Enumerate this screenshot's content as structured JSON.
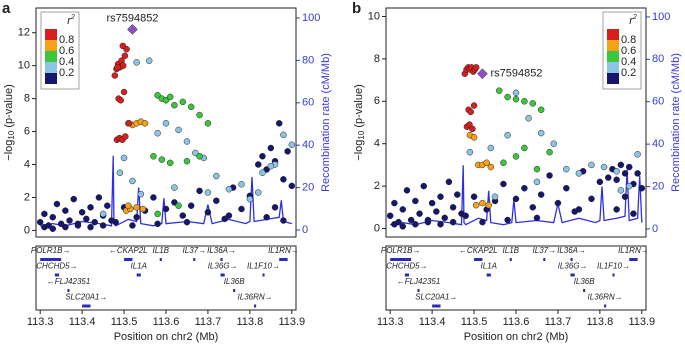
{
  "chart_data": [
    {
      "type": "scatter",
      "panel": "a",
      "ylabel": "−log",
      "ylabel_sub": "10",
      "ylabel_rest": " (p-value)",
      "y2label": "Recombination rate (cM/Mb)",
      "xlabel": "Position on chr2 (Mb)",
      "xlim": [
        113.29,
        113.91
      ],
      "xticks": [
        113.3,
        113.4,
        113.5,
        113.6,
        113.7,
        113.8,
        113.9
      ],
      "ylim": [
        -0.4,
        13.5
      ],
      "yticks": [
        0,
        2,
        4,
        6,
        8,
        10,
        12
      ],
      "y2lim": [
        -3.3,
        104.7
      ],
      "y2ticks": [
        0,
        20,
        40,
        60,
        80,
        100
      ],
      "legend": {
        "loc": "upper left",
        "title": "r",
        "title_sup": "2",
        "colors": [
          "#d91e1e",
          "#f5a219",
          "#3cc63c",
          "#8cc4e4",
          "#15166c"
        ],
        "ticks": [
          0.8,
          0.6,
          0.4,
          0.2
        ]
      },
      "lead": {
        "name": "rs7594852",
        "x": 113.52,
        "y": 12.2,
        "color": "#8e4fc2"
      },
      "series": [
        {
          "color": "#15166c",
          "x": [
            113.3,
            113.31,
            113.32,
            113.33,
            113.34,
            113.35,
            113.36,
            113.37,
            113.38,
            113.39,
            113.4,
            113.41,
            113.42,
            113.43,
            113.44,
            113.45,
            113.46,
            113.47,
            113.31,
            113.33,
            113.36,
            113.39,
            113.42,
            113.45,
            113.48,
            113.5,
            113.53,
            113.55,
            113.57,
            113.6,
            113.62,
            113.64,
            113.66,
            113.68,
            113.7,
            113.72,
            113.74,
            113.76,
            113.78,
            113.8,
            113.82,
            113.83,
            113.84,
            113.85,
            113.86,
            113.87,
            113.88,
            113.89,
            113.9,
            113.84,
            113.86,
            113.88,
            113.52,
            113.58,
            113.65,
            113.75
          ],
          "values": [
            0.5,
            1.0,
            0.3,
            0.8,
            1.6,
            0.4,
            1.2,
            0.6,
            1.9,
            0.3,
            1.1,
            0.7,
            1.4,
            0.5,
            2.0,
            0.9,
            1.5,
            0.6,
            0.2,
            0.1,
            0.2,
            0.4,
            0.2,
            0.3,
            0.5,
            1.4,
            0.8,
            1.2,
            2.0,
            1.3,
            1.7,
            0.9,
            1.5,
            2.4,
            1.1,
            1.8,
            0.7,
            2.6,
            1.3,
            2.1,
            4.0,
            4.5,
            3.7,
            5.0,
            4.2,
            6.5,
            3.1,
            4.8,
            2.7,
            0.8,
            1.4,
            0.6,
            0.3,
            0.4,
            0.5,
            0.9
          ]
        },
        {
          "color": "#8cc4e4",
          "x": [
            113.49,
            113.5,
            113.53,
            113.56,
            113.58,
            113.6,
            113.63,
            113.65,
            113.67,
            113.69,
            113.72,
            113.75,
            113.78,
            113.8,
            113.83,
            113.86,
            113.88,
            113.9,
            113.85,
            113.82,
            113.54,
            113.62,
            113.7,
            113.52,
            113.45
          ],
          "values": [
            3.5,
            4.4,
            10.2,
            10.3,
            5.9,
            6.5,
            6.1,
            5.4,
            4.7,
            4.4,
            3.3,
            2.5,
            2.8,
            1.9,
            3.5,
            4.0,
            5.8,
            5.2,
            3.9,
            2.3,
            2.2,
            2.6,
            2.3,
            3.0,
            1.0
          ]
        },
        {
          "color": "#3cc63c",
          "x": [
            113.58,
            113.59,
            113.6,
            113.61,
            113.62,
            113.64,
            113.66,
            113.68,
            113.7,
            113.57,
            113.59,
            113.61,
            113.65,
            113.68,
            113.58,
            113.63
          ],
          "values": [
            8.2,
            8.0,
            7.9,
            8.1,
            7.6,
            7.8,
            7.5,
            7.0,
            6.5,
            4.5,
            4.3,
            4.1,
            4.2,
            4.5,
            1.0,
            1.5
          ]
        },
        {
          "color": "#f5a219",
          "x": [
            113.51,
            113.52,
            113.53,
            113.54,
            113.55,
            113.505,
            113.515,
            113.53,
            113.545,
            113.51
          ],
          "values": [
            6.5,
            6.4,
            6.5,
            6.6,
            6.5,
            1.2,
            1.3,
            1.4,
            1.3,
            1.5
          ]
        },
        {
          "color": "#d91e1e",
          "x": [
            113.478,
            113.482,
            113.486,
            113.49,
            113.494,
            113.498,
            113.502,
            113.506,
            113.483,
            113.489,
            113.496,
            113.503,
            113.487,
            113.492,
            113.5,
            113.484,
            113.497,
            113.512
          ],
          "values": [
            9.4,
            9.8,
            10.1,
            9.9,
            10.3,
            10.0,
            10.6,
            11.0,
            5.5,
            5.6,
            5.5,
            5.7,
            8.0,
            7.9,
            8.4,
            9.9,
            11.2,
            6.5
          ]
        }
      ],
      "recomb": {
        "color": "#2f2fe0",
        "x": [
          113.3,
          113.33,
          113.36,
          113.4,
          113.44,
          113.47,
          113.474,
          113.476,
          113.48,
          113.51,
          113.53,
          113.535,
          113.54,
          113.57,
          113.59,
          113.595,
          113.6,
          113.65,
          113.69,
          113.7,
          113.71,
          113.75,
          113.79,
          113.8,
          113.805,
          113.81,
          113.84,
          113.87,
          113.875,
          113.88,
          113.9
        ],
        "values": [
          2,
          3,
          2,
          4,
          3,
          2,
          35,
          3,
          2,
          5,
          4,
          20,
          3,
          2,
          3,
          15,
          3,
          4,
          3,
          12,
          3,
          5,
          3,
          4,
          25,
          4,
          5,
          6,
          14,
          4,
          3
        ]
      },
      "genes": [
        [
          {
            "name": "POLR1B→",
            "start": 113.3,
            "end": 113.35
          },
          {
            "name": "←CKAP2L",
            "start": 113.5,
            "end": 113.52
          },
          {
            "name": "IL1B",
            "start": 113.585,
            "end": 113.59
          },
          {
            "name": "IL37→",
            "start": 113.665,
            "end": 113.67
          },
          {
            "name": "IL36A→",
            "start": 113.73,
            "end": 113.735
          },
          {
            "name": "IL1RN→",
            "start": 113.87,
            "end": 113.89
          }
        ],
        [
          {
            "name": "CHCHD5→",
            "start": 113.335,
            "end": 113.345
          },
          {
            "name": "IL1A",
            "start": 113.53,
            "end": 113.54
          },
          {
            "name": "IL36G→",
            "start": 113.73,
            "end": 113.74
          },
          {
            "name": "IL1F10→",
            "start": 113.83,
            "end": 113.835
          }
        ],
        [
          {
            "name": "←FLJ42351",
            "start": 113.365,
            "end": 113.37
          },
          {
            "name": "IL36B",
            "start": 113.76,
            "end": 113.765
          }
        ],
        [
          {
            "name": "SLC20A1→",
            "start": 113.4,
            "end": 113.42
          },
          {
            "name": "IL36RN→",
            "start": 113.81,
            "end": 113.815
          }
        ]
      ]
    },
    {
      "type": "scatter",
      "panel": "b",
      "ylabel": "−log",
      "ylabel_sub": "10",
      "ylabel_rest": " (p-value)",
      "y2label": "Recombination rate (cM/Mb)",
      "xlabel": "Position on chr2 (Mb)",
      "xlim": [
        113.29,
        113.91
      ],
      "xticks": [
        113.3,
        113.4,
        113.5,
        113.6,
        113.7,
        113.8,
        113.9
      ],
      "ylim": [
        -0.4,
        10.4
      ],
      "yticks": [
        0,
        2,
        4,
        6,
        8,
        10
      ],
      "y2lim": [
        -3.8,
        104.2
      ],
      "y2ticks": [
        0,
        20,
        40,
        60,
        80,
        100
      ],
      "legend": {
        "loc": "upper right",
        "title": "r",
        "title_sup": "2",
        "colors": [
          "#d91e1e",
          "#f5a219",
          "#3cc63c",
          "#8cc4e4",
          "#15166c"
        ],
        "ticks": [
          0.8,
          0.6,
          0.4,
          0.2
        ]
      },
      "lead": {
        "name": "rs7594852",
        "x": 113.52,
        "y": 7.3,
        "color": "#8e4fc2"
      },
      "series": [
        {
          "color": "#15166c",
          "x": [
            113.3,
            113.31,
            113.32,
            113.33,
            113.34,
            113.35,
            113.36,
            113.37,
            113.38,
            113.39,
            113.4,
            113.41,
            113.42,
            113.43,
            113.44,
            113.45,
            113.46,
            113.47,
            113.31,
            113.33,
            113.36,
            113.39,
            113.42,
            113.45,
            113.48,
            113.5,
            113.53,
            113.55,
            113.57,
            113.6,
            113.62,
            113.64,
            113.66,
            113.68,
            113.7,
            113.72,
            113.74,
            113.76,
            113.78,
            113.8,
            113.82,
            113.83,
            113.84,
            113.85,
            113.86,
            113.87,
            113.88,
            113.89,
            113.9,
            113.84,
            113.86,
            113.88,
            113.52,
            113.58,
            113.65,
            113.75
          ],
          "values": [
            0.6,
            1.2,
            0.3,
            0.9,
            1.8,
            0.4,
            1.3,
            0.7,
            2.0,
            0.3,
            1.2,
            0.8,
            1.5,
            0.5,
            2.2,
            1.0,
            1.6,
            0.7,
            0.2,
            0.1,
            0.2,
            0.4,
            0.2,
            0.3,
            0.6,
            1.5,
            0.9,
            1.3,
            2.1,
            1.4,
            1.9,
            1.0,
            1.6,
            2.5,
            1.2,
            1.9,
            0.8,
            2.7,
            1.4,
            2.2,
            2.4,
            2.8,
            2.3,
            3.0,
            2.6,
            2.9,
            2.1,
            2.6,
            1.9,
            0.9,
            1.5,
            0.7,
            0.3,
            0.4,
            0.5,
            0.9
          ]
        },
        {
          "color": "#8cc4e4",
          "x": [
            113.49,
            113.54,
            113.58,
            113.6,
            113.63,
            113.66,
            113.69,
            113.72,
            113.75,
            113.78,
            113.81,
            113.84,
            113.87,
            113.89,
            113.85,
            113.55,
            113.65
          ],
          "values": [
            3.6,
            3.8,
            4.4,
            6.4,
            5.2,
            4.5,
            4.0,
            2.8,
            2.6,
            3.0,
            2.9,
            2.7,
            2.0,
            3.5,
            1.8,
            1.5,
            2.2
          ]
        },
        {
          "color": "#3cc63c",
          "x": [
            113.56,
            113.58,
            113.6,
            113.62,
            113.64,
            113.66,
            113.57,
            113.6,
            113.62,
            113.65,
            113.68
          ],
          "values": [
            6.5,
            6.2,
            6.1,
            6.0,
            5.9,
            5.6,
            3.1,
            3.4,
            3.8,
            2.8,
            3.6
          ]
        },
        {
          "color": "#f5a219",
          "x": [
            113.49,
            113.5,
            113.51,
            113.52,
            113.53,
            113.54,
            113.505,
            113.52,
            113.535
          ],
          "values": [
            4.4,
            4.3,
            3.0,
            3.0,
            3.1,
            2.9,
            1.1,
            1.2,
            1.1
          ]
        },
        {
          "color": "#d91e1e",
          "x": [
            113.478,
            113.482,
            113.486,
            113.49,
            113.494,
            113.498,
            113.502,
            113.483,
            113.489,
            113.496,
            113.487,
            113.492,
            113.5,
            113.505
          ],
          "values": [
            7.3,
            7.5,
            7.6,
            7.5,
            7.6,
            7.4,
            7.5,
            4.8,
            4.9,
            4.7,
            5.6,
            5.5,
            5.8,
            7.6
          ]
        }
      ],
      "recomb": {
        "color": "#2f2fe0",
        "x": [
          113.3,
          113.33,
          113.36,
          113.4,
          113.44,
          113.47,
          113.474,
          113.476,
          113.48,
          113.51,
          113.53,
          113.535,
          113.54,
          113.57,
          113.59,
          113.595,
          113.6,
          113.65,
          113.69,
          113.7,
          113.71,
          113.75,
          113.79,
          113.8,
          113.805,
          113.81,
          113.84,
          113.86,
          113.865,
          113.87,
          113.89,
          113.895,
          113.9
        ],
        "values": [
          2,
          3,
          2,
          4,
          3,
          2,
          30,
          3,
          2,
          5,
          4,
          18,
          3,
          2,
          3,
          14,
          3,
          4,
          3,
          12,
          3,
          5,
          3,
          4,
          20,
          4,
          5,
          6,
          28,
          4,
          5,
          25,
          3
        ]
      },
      "genes": [
        [
          {
            "name": "POLR1B→",
            "start": 113.3,
            "end": 113.35
          },
          {
            "name": "←CKAP2L",
            "start": 113.5,
            "end": 113.52
          },
          {
            "name": "IL1B",
            "start": 113.585,
            "end": 113.59
          },
          {
            "name": "IL37→",
            "start": 113.665,
            "end": 113.67
          },
          {
            "name": "IL36A→",
            "start": 113.73,
            "end": 113.735
          },
          {
            "name": "IL1RN→",
            "start": 113.87,
            "end": 113.89
          }
        ],
        [
          {
            "name": "CHCHD5→",
            "start": 113.335,
            "end": 113.345
          },
          {
            "name": "IL1A",
            "start": 113.53,
            "end": 113.54
          },
          {
            "name": "IL36G→",
            "start": 113.73,
            "end": 113.74
          },
          {
            "name": "IL1F10→",
            "start": 113.83,
            "end": 113.835
          }
        ],
        [
          {
            "name": "←FLJ42351",
            "start": 113.365,
            "end": 113.37
          },
          {
            "name": "IL36B",
            "start": 113.76,
            "end": 113.765
          }
        ],
        [
          {
            "name": "SLC20A1→",
            "start": 113.4,
            "end": 113.42
          },
          {
            "name": "IL36RN→",
            "start": 113.81,
            "end": 113.815
          }
        ]
      ]
    }
  ]
}
